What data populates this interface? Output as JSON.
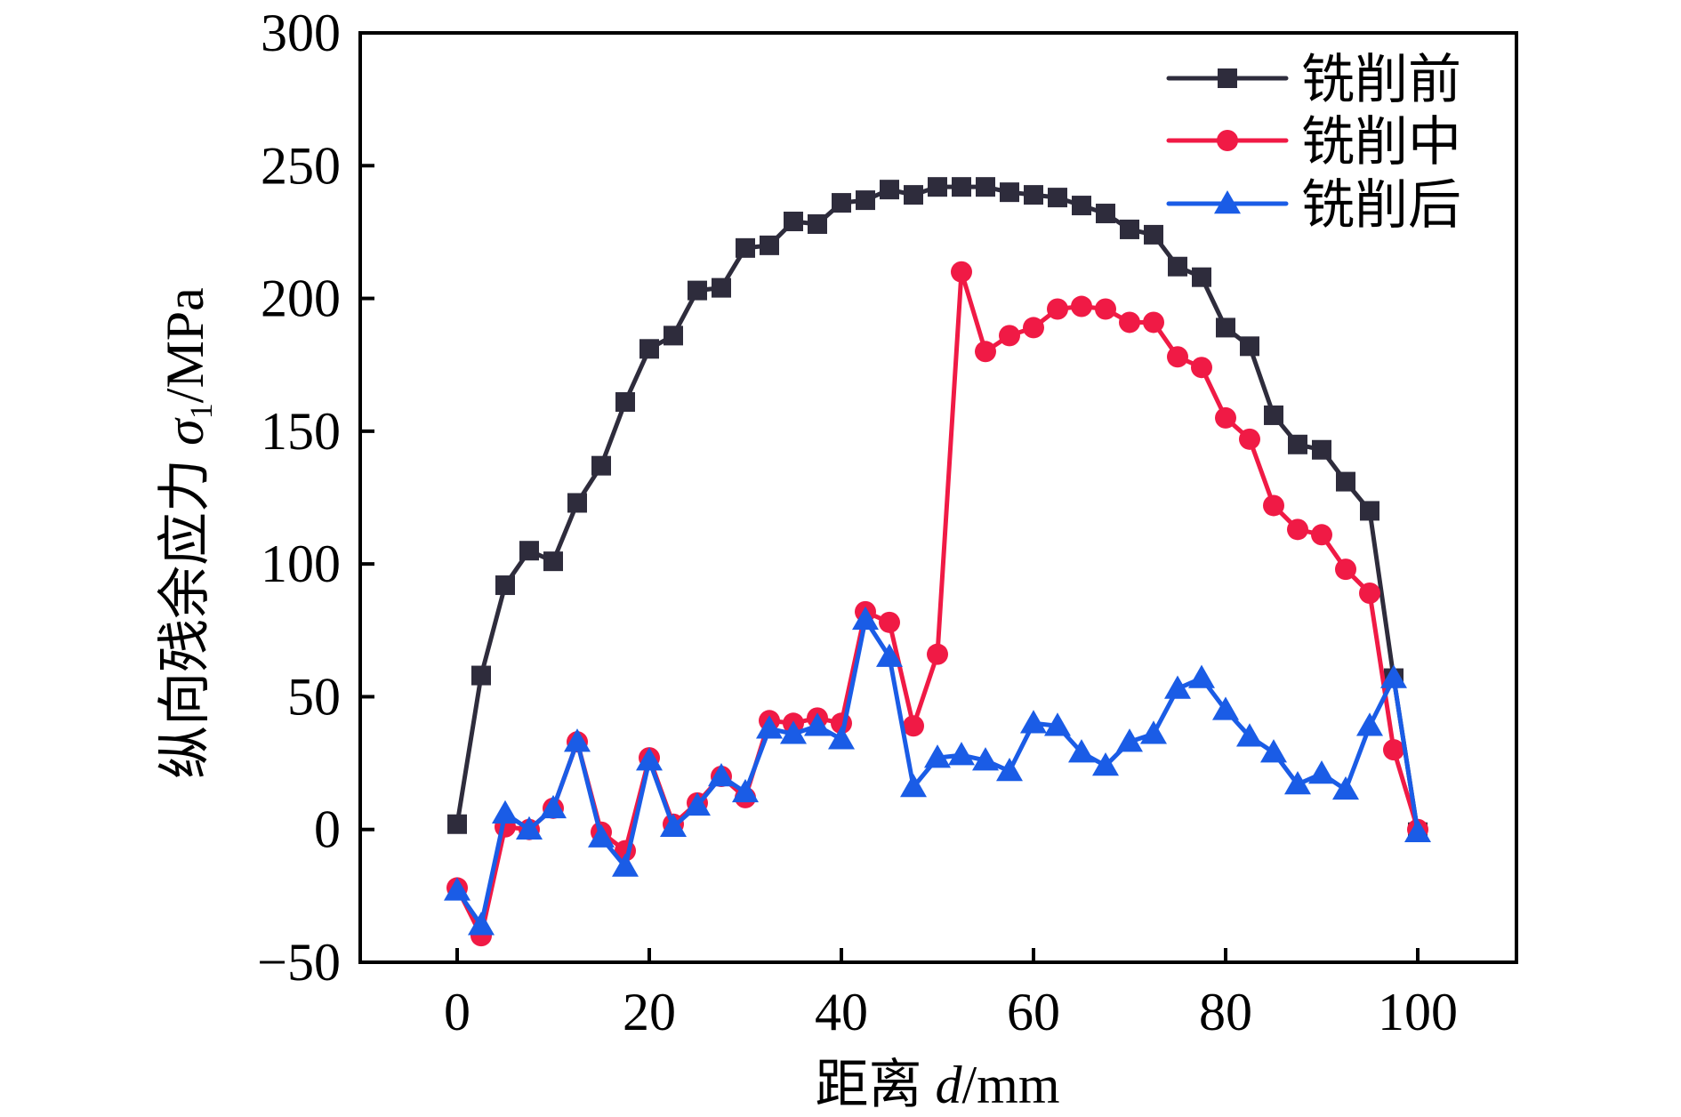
{
  "chart_data": {
    "type": "line",
    "title": "",
    "xlabel": "距离 d/mm",
    "xlabel_parts": {
      "prefix": "距离 ",
      "var": "d",
      "suffix": "/mm"
    },
    "ylabel": "纵向残余应力 σ1/MPa",
    "ylabel_parts": {
      "prefix": "纵向残余应力 ",
      "var": "σ",
      "sub": "1",
      "suffix": "/MPa"
    },
    "xlim": [
      -10,
      110
    ],
    "ylim": [
      -50,
      300
    ],
    "xticks": [
      0,
      20,
      40,
      60,
      80,
      100
    ],
    "xtick_labels": [
      "0",
      "20",
      "40",
      "60",
      "80",
      "100"
    ],
    "yticks": [
      -50,
      0,
      50,
      100,
      150,
      200,
      250,
      300
    ],
    "ytick_labels": [
      "−50",
      "0",
      "50",
      "100",
      "150",
      "200",
      "250",
      "300"
    ],
    "grid": false,
    "legend_position": "top-right",
    "x": [
      0,
      2.5,
      5,
      7.5,
      10,
      12.5,
      15,
      17.5,
      20,
      22.5,
      25,
      27.5,
      30,
      32.5,
      35,
      37.5,
      40,
      42.5,
      45,
      47.5,
      50,
      52.5,
      55,
      57.5,
      60,
      62.5,
      65,
      67.5,
      70,
      72.5,
      75,
      77.5,
      80,
      82.5,
      85,
      87.5,
      90,
      92.5,
      95,
      97.5,
      100
    ],
    "series": [
      {
        "name": "铣削前",
        "color": "#2e2c3c",
        "marker": "square",
        "values": [
          2,
          58,
          92,
          105,
          101,
          123,
          137,
          161,
          181,
          186,
          203,
          204,
          219,
          220,
          229,
          228,
          236,
          237,
          241,
          239,
          242,
          242,
          242,
          240,
          239,
          238,
          235,
          232,
          226,
          224,
          212,
          208,
          189,
          182,
          156,
          145,
          143,
          131,
          120,
          57,
          -1
        ]
      },
      {
        "name": "铣削中",
        "color": "#f01a45",
        "marker": "circle",
        "values": [
          -22,
          -40,
          1,
          0,
          8,
          33,
          -1,
          -8,
          27,
          2,
          10,
          20,
          12,
          41,
          40,
          42,
          40,
          82,
          78,
          39,
          66,
          210,
          180,
          186,
          189,
          196,
          197,
          196,
          191,
          191,
          178,
          174,
          155,
          147,
          122,
          113,
          111,
          98,
          89,
          30,
          0
        ]
      },
      {
        "name": "铣削后",
        "color": "#1a5ce6",
        "marker": "triangle",
        "values": [
          -23,
          -36,
          6,
          0,
          8,
          33,
          -3,
          -14,
          26,
          1,
          9,
          20,
          14,
          38,
          36,
          39,
          34,
          79,
          65,
          16,
          27,
          28,
          26,
          22,
          40,
          39,
          29,
          24,
          33,
          36,
          53,
          57,
          45,
          35,
          29,
          17,
          21,
          15,
          39,
          57,
          -1
        ]
      }
    ]
  }
}
